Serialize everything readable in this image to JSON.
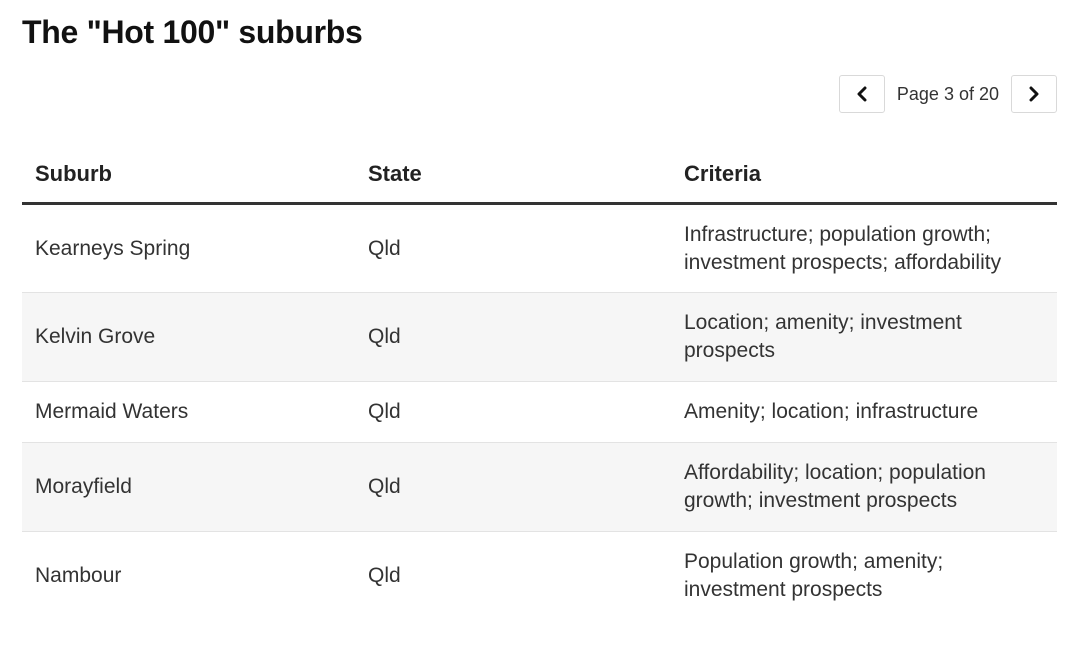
{
  "page": {
    "title": "The \"Hot 100\" suburbs"
  },
  "pager": {
    "prev_icon": "chevron-left-icon",
    "next_icon": "chevron-right-icon",
    "label": "Page 3 of 20"
  },
  "table": {
    "headers": [
      "Suburb",
      "State",
      "Criteria"
    ],
    "rows": [
      [
        "Kearneys Spring",
        "Qld",
        "Infrastructure; population growth; investment prospects; affordability"
      ],
      [
        "Kelvin Grove",
        "Qld",
        "Location; amenity; investment prospects"
      ],
      [
        "Mermaid Waters",
        "Qld",
        "Amenity; location; infrastructure"
      ],
      [
        "Morayfield",
        "Qld",
        "Affordability; location; population growth; investment prospects"
      ],
      [
        "Nambour",
        "Qld",
        "Population growth; amenity; investment prospects"
      ]
    ]
  },
  "colors": {
    "header_rule": "#333333",
    "row_stripe": "#f6f6f6",
    "row_divider": "#e3e3e3"
  }
}
